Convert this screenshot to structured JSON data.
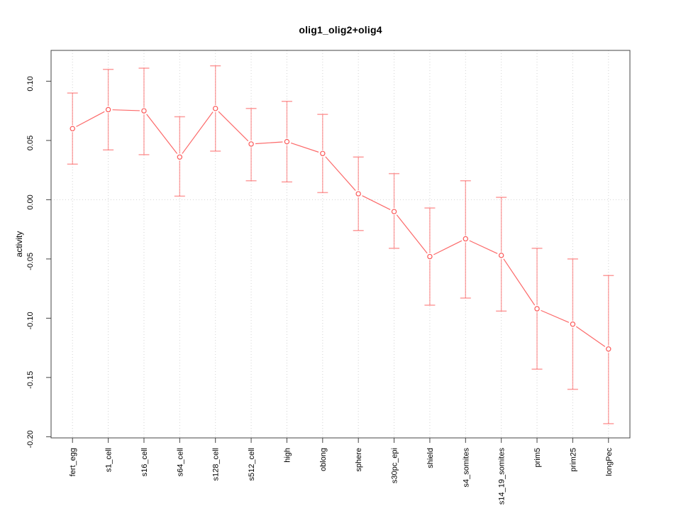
{
  "figure": {
    "background": "#ffffff"
  },
  "chart_data": {
    "type": "line",
    "title": "olig1_olig2+olig4",
    "xlabel": "",
    "ylabel": "activity",
    "categories": [
      "fert_egg",
      "s1_cell",
      "s16_cell",
      "s64_cell",
      "s128_cell",
      "s512_cell",
      "high",
      "oblong",
      "sphere",
      "s30pc_epi",
      "shield",
      "s4_somites",
      "s14_19_somites",
      "prim5",
      "prim25",
      "longPec"
    ],
    "series": [
      {
        "name": "activity",
        "means": [
          0.06,
          0.076,
          0.075,
          0.036,
          0.077,
          0.047,
          0.049,
          0.039,
          0.005,
          -0.01,
          -0.048,
          -0.033,
          -0.047,
          -0.092,
          -0.105,
          -0.126
        ],
        "ci_upper": [
          0.09,
          0.11,
          0.111,
          0.07,
          0.113,
          0.077,
          0.083,
          0.072,
          0.036,
          0.022,
          -0.007,
          0.016,
          0.002,
          -0.041,
          -0.05,
          -0.064
        ],
        "ci_lower": [
          0.03,
          0.042,
          0.038,
          0.003,
          0.041,
          0.016,
          0.015,
          0.006,
          -0.026,
          -0.041,
          -0.089,
          -0.083,
          -0.094,
          -0.143,
          -0.16,
          -0.189
        ]
      }
    ],
    "yticks": [
      0.1,
      0.05,
      0.0,
      -0.05,
      -0.1,
      -0.15,
      -0.2
    ],
    "ylim": [
      -0.201,
      0.126
    ],
    "grid": "dotted vertical gridline at each category; dotted horizontal reference line at y=0",
    "legend": "none",
    "marker": "open-circle",
    "colors": {
      "series": "#fc4f4f",
      "error_bar": "#fc5a5a",
      "grid": "#d2d2d2",
      "axis": "#444444",
      "text": "#000000"
    }
  }
}
